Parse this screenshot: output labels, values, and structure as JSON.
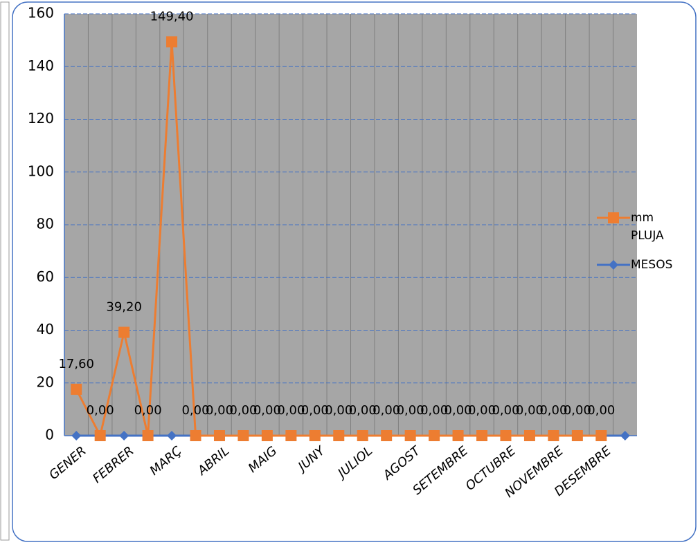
{
  "chart_data": {
    "type": "line",
    "categories": [
      "GENER",
      null,
      "FEBRER",
      null,
      "MARÇ",
      null,
      "ABRIL",
      null,
      "MAIG",
      null,
      "JUNY",
      null,
      "JULIOL",
      null,
      "AGOST",
      null,
      "SETEMBRE",
      null,
      "OCTUBRE",
      null,
      "NOVEMBRE",
      null,
      "DESEMBRE",
      null
    ],
    "series": [
      {
        "name": "mm PLUJA",
        "color": "#ed7d31",
        "marker": "square",
        "values": [
          17.6,
          0,
          39.2,
          0,
          149.4,
          0,
          0,
          0,
          0,
          0,
          0,
          0,
          0,
          0,
          0,
          0,
          0,
          0,
          0,
          0,
          0,
          0,
          0,
          null
        ],
        "value_labels": [
          "17,60",
          "0,00",
          "39,20",
          "0,00",
          "149,40",
          "0,00",
          "0,00",
          "0,00",
          "0,00",
          "0,00",
          "0,00",
          "0,00",
          "0,00",
          "0,00",
          "0,00",
          "0,00",
          "0,00",
          "0,00",
          "0,00",
          "0,00",
          "0,00",
          "0,00",
          "0,00",
          null
        ]
      },
      {
        "name": "MESOS",
        "color": "#4472c4",
        "marker": "diamond",
        "values": [
          0,
          0,
          0,
          0,
          0,
          0,
          0,
          0,
          0,
          0,
          0,
          0,
          0,
          0,
          0,
          0,
          0,
          0,
          0,
          0,
          0,
          0,
          0,
          0
        ]
      }
    ],
    "ylim": [
      0,
      160
    ],
    "yticks": [
      0,
      20,
      40,
      60,
      80,
      100,
      120,
      140,
      160
    ],
    "grid": true,
    "legend": "right"
  }
}
